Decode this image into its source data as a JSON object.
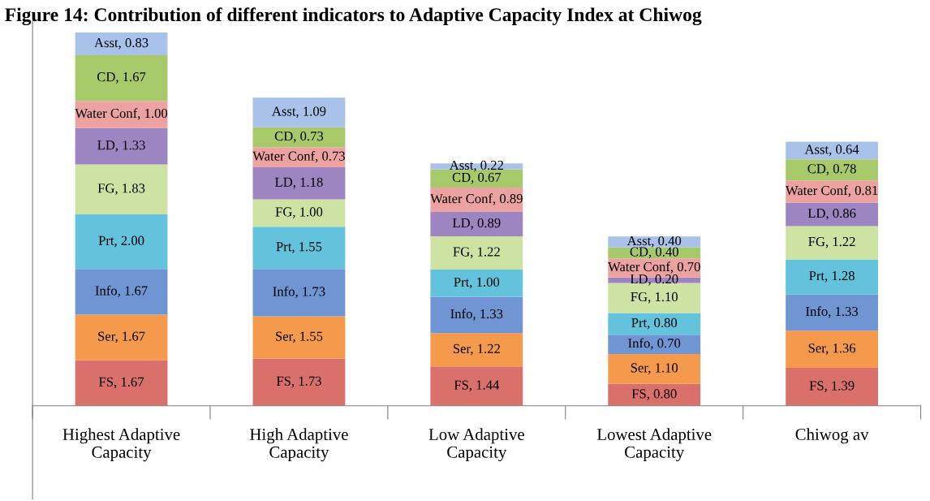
{
  "chart_data": {
    "type": "bar",
    "stacked": true,
    "title": "Figure 14: Contribution of different indicators to Adaptive Capacity Index at Chiwog",
    "categories": [
      "Highest Adaptive Capacity",
      "High Adaptive Capacity",
      "Low Adaptive Capacity",
      "Lowest Adaptive Capacity",
      "Chiwog av"
    ],
    "series": [
      {
        "color": "#d9706c",
        "values": [
          1.67,
          1.73,
          1.44,
          0.8,
          1.39
        ],
        "value_labels": [
          "FS, 1.67",
          "FS, 1.73",
          "FS, 1.44",
          "FS, 0.80",
          "FS, 1.39"
        ]
      },
      {
        "color": "#f59a4c",
        "values": [
          1.67,
          1.55,
          1.22,
          1.1,
          1.36
        ],
        "value_labels": [
          "Ser, 1.67",
          "Ser, 1.55",
          "Ser, 1.22",
          "Ser, 1.10",
          "Ser, 1.36"
        ]
      },
      {
        "color": "#6f95d2",
        "values": [
          1.67,
          1.73,
          1.33,
          0.7,
          1.33
        ],
        "value_labels": [
          "Info, 1.67",
          "Info, 1.73",
          "Info, 1.33",
          "Info, 0.70",
          "Info, 1.33"
        ]
      },
      {
        "color": "#63c3dc",
        "values": [
          2.0,
          1.55,
          1.0,
          0.8,
          1.28
        ],
        "value_labels": [
          "Prt, 2.00",
          "Prt, 1.55",
          "Prt, 1.00",
          "Prt, 0.80",
          "Prt, 1.28"
        ]
      },
      {
        "color": "#cde3a4",
        "values": [
          1.83,
          1.0,
          1.22,
          1.1,
          1.22
        ],
        "value_labels": [
          "FG, 1.83",
          "FG, 1.00",
          "FG, 1.22",
          "FG, 1.10",
          "FG, 1.22"
        ]
      },
      {
        "color": "#9c85c0",
        "values": [
          1.33,
          1.18,
          0.89,
          0.2,
          0.86
        ],
        "value_labels": [
          "LD, 1.33",
          "LD, 1.18",
          "LD, 0.89",
          "LD, 0.20",
          "LD, 0.86"
        ]
      },
      {
        "color": "#eba2a0",
        "values": [
          1.0,
          0.73,
          0.89,
          0.7,
          0.81
        ],
        "value_labels": [
          "Water Conf, 1.00",
          "Water Conf, 0.73",
          "Water Conf, 0.89",
          "Water Conf, 0.70",
          "Water Conf, 0.81"
        ]
      },
      {
        "color": "#a8c96a",
        "values": [
          1.67,
          0.73,
          0.67,
          0.4,
          0.78
        ],
        "value_labels": [
          "CD, 1.67",
          "CD, 0.73",
          "CD, 0.67",
          "CD, 0.40",
          "CD, 0.78"
        ]
      },
      {
        "color": "#a8c2ea",
        "values": [
          0.83,
          1.09,
          0.22,
          0.4,
          0.64
        ],
        "value_labels": [
          "Asst, 0.83",
          "Asst, 1.09",
          "Asst, 0.22",
          "Asst, 0.40",
          "Asst, 0.64"
        ]
      }
    ]
  }
}
